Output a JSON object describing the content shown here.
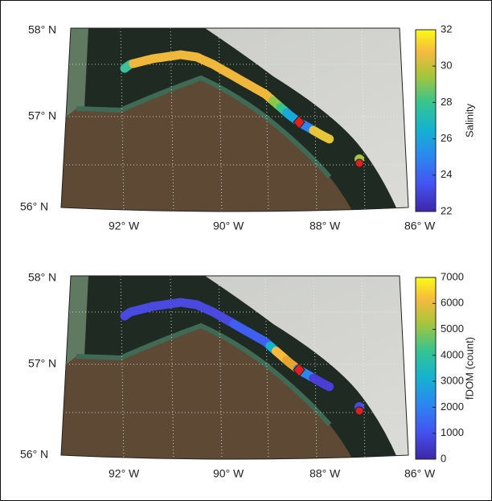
{
  "panels": [
    {
      "lat_labels": [
        "58° N",
        "57° N",
        "56° N"
      ],
      "lon_labels": [
        "92° W",
        "90° W",
        "88° W",
        "86° W"
      ],
      "colorbar": {
        "label": "Salinity",
        "lim": [
          22,
          32
        ],
        "ticks": [
          22,
          24,
          26,
          28,
          30,
          32
        ]
      }
    },
    {
      "lat_labels": [
        "58° N",
        "57° N",
        "56° N"
      ],
      "lon_labels": [
        "92° W",
        "90° W",
        "88° W",
        "86° W"
      ],
      "colorbar": {
        "label": "fDOM (count)",
        "lim": [
          0,
          7000
        ],
        "ticks": [
          0,
          1000,
          2000,
          3000,
          4000,
          5000,
          6000,
          7000
        ]
      }
    }
  ]
}
